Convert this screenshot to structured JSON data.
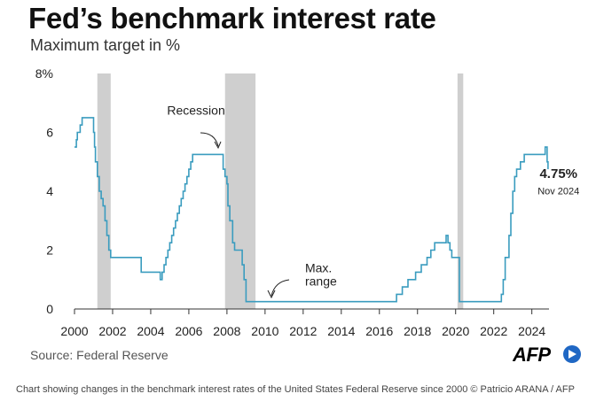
{
  "title": "Fed’s benchmark interest rate",
  "subtitle": "Maximum target in %",
  "source": "Source: Federal Reserve",
  "logo": "AFP",
  "caption": "Chart showing changes in the benchmark interest rates of the United States Federal Reserve since 2000 © Patricio ARANA / AFP",
  "colors": {
    "line": "#3a9cbf",
    "recession": "#cfcfcf",
    "accent": "#1f67c4"
  },
  "chart_data": {
    "type": "line",
    "title": "Fed’s benchmark interest rate",
    "ylabel": "Maximum target in %",
    "xlim": [
      2000,
      2024.9
    ],
    "ylim": [
      0,
      8
    ],
    "x_ticks": [
      2000,
      2002,
      2004,
      2006,
      2008,
      2010,
      2012,
      2014,
      2016,
      2018,
      2020,
      2022,
      2024
    ],
    "x_tick_labels": [
      "2000",
      "2002",
      "2004",
      "2006",
      "2008",
      "2010",
      "2012",
      "2014",
      "2016",
      "2018",
      "2020",
      "2022",
      "2024"
    ],
    "y_ticks": [
      0,
      2,
      4,
      6,
      8
    ],
    "y_tick_labels": [
      "0",
      "2",
      "4",
      "6",
      "8%"
    ],
    "grid": false,
    "recessions": [
      [
        2001.2,
        2001.9
      ],
      [
        2007.9,
        2009.5
      ],
      [
        2020.1,
        2020.4
      ]
    ],
    "series": [
      {
        "x": [
          2000.0,
          2000.1,
          2000.15,
          2000.25,
          2000.3,
          2000.4,
          2000.5,
          2000.9,
          2001.0,
          2001.05,
          2001.1,
          2001.2,
          2001.3,
          2001.4,
          2001.5,
          2001.6,
          2001.7,
          2001.8,
          2001.9,
          2002.9,
          2003.5,
          2004.5,
          2004.6,
          2004.7,
          2004.8,
          2004.9,
          2005.0,
          2005.1,
          2005.2,
          2005.3,
          2005.4,
          2005.5,
          2005.6,
          2005.7,
          2005.8,
          2005.9,
          2006.0,
          2006.1,
          2006.2,
          2006.3,
          2006.4,
          2006.5,
          2007.7,
          2007.8,
          2007.9,
          2008.0,
          2008.05,
          2008.15,
          2008.3,
          2008.4,
          2008.8,
          2008.9,
          2009.0,
          2015.9,
          2016.9,
          2017.2,
          2017.5,
          2017.9,
          2018.2,
          2018.5,
          2018.7,
          2018.9,
          2019.5,
          2019.6,
          2019.7,
          2019.8,
          2020.2,
          2022.2,
          2022.4,
          2022.5,
          2022.6,
          2022.8,
          2022.9,
          2023.0,
          2023.1,
          2023.2,
          2023.4,
          2023.6,
          2024.7,
          2024.8,
          2024.85
        ],
        "y": [
          5.5,
          5.75,
          6.0,
          6.0,
          6.25,
          6.5,
          6.5,
          6.5,
          6.0,
          5.5,
          5.0,
          4.5,
          4.0,
          3.75,
          3.5,
          3.0,
          2.5,
          2.0,
          1.75,
          1.75,
          1.25,
          1.0,
          1.25,
          1.5,
          1.75,
          2.0,
          2.25,
          2.5,
          2.75,
          3.0,
          3.25,
          3.5,
          3.75,
          4.0,
          4.25,
          4.5,
          4.75,
          5.0,
          5.25,
          5.25,
          5.25,
          5.25,
          5.25,
          4.75,
          4.5,
          4.25,
          3.5,
          3.0,
          2.25,
          2.0,
          1.5,
          1.0,
          0.25,
          0.25,
          0.5,
          0.75,
          1.0,
          1.25,
          1.5,
          1.75,
          2.0,
          2.25,
          2.5,
          2.25,
          2.0,
          1.75,
          0.25,
          0.25,
          0.5,
          1.0,
          1.75,
          2.5,
          3.25,
          4.0,
          4.5,
          4.75,
          5.0,
          5.25,
          5.5,
          5.0,
          4.75
        ]
      }
    ],
    "annotations": [
      {
        "text": "Recession",
        "x": 2007.9,
        "y": 6.6
      },
      {
        "text": "Max.",
        "x": 2012.1,
        "y": 1.25
      },
      {
        "text": "range",
        "x": 2012.1,
        "y": 0.8
      },
      {
        "text": "4.75%",
        "x": 2025.4,
        "y": 4.45
      },
      {
        "text": "Nov 2024",
        "x": 2025.4,
        "y": 3.9
      }
    ]
  }
}
